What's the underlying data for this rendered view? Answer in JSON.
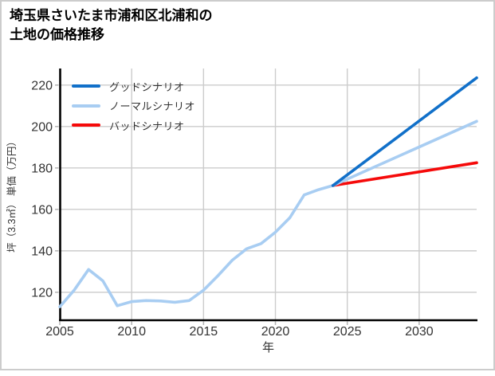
{
  "frame": {
    "border_color": "#cccccc",
    "background": "#ffffff"
  },
  "header": {
    "title_lines": [
      "埼玉県さいたま市浦和区北浦和の",
      "土地の価格推移"
    ]
  },
  "chart_data": {
    "type": "line",
    "title": "埼玉県さいたま市浦和区北浦和の土地の価格推移",
    "xlabel": "年",
    "ylabel": "坪（3.3㎡） 単価（万円）",
    "xlim": [
      2005,
      2034
    ],
    "ylim": [
      106.5,
      228
    ],
    "x_ticks": [
      2005,
      2010,
      2015,
      2020,
      2025,
      2030
    ],
    "y_ticks": [
      120,
      140,
      160,
      180,
      200,
      220
    ],
    "grid": true,
    "legend_position": "upper-left",
    "history": {
      "x": [
        2005,
        2006,
        2007,
        2008,
        2009,
        2010,
        2011,
        2012,
        2013,
        2014,
        2015,
        2016,
        2017,
        2018,
        2019,
        2020,
        2021,
        2022,
        2023,
        2024
      ],
      "values": [
        113,
        121,
        131,
        125.5,
        113.5,
        115.5,
        116,
        115.8,
        115.2,
        116,
        121,
        128,
        135.5,
        141,
        143.5,
        149,
        156,
        167,
        169.5,
        171.5
      ],
      "color": "#a8cdf2"
    },
    "series": [
      {
        "name": "グッドシナリオ",
        "color": "#1170c9",
        "x": [
          2024,
          2034
        ],
        "values": [
          171.5,
          223.5
        ]
      },
      {
        "name": "ノーマルシナリオ",
        "color": "#a8cdf2",
        "x": [
          2024,
          2034
        ],
        "values": [
          171.5,
          202.5
        ]
      },
      {
        "name": "バッドシナリオ",
        "color": "#f50a0a",
        "x": [
          2024,
          2034
        ],
        "values": [
          171.5,
          182.5
        ]
      }
    ],
    "axis_colors": {
      "grid": "#cccccc",
      "spine": "#000000",
      "tick": "#b3b3b3",
      "label": "#333333"
    }
  }
}
